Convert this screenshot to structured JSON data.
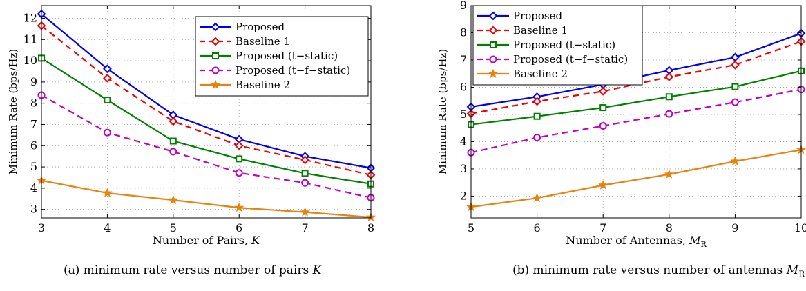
{
  "chart_data": [
    {
      "type": "line",
      "xlabel_text": "Number of Pairs,",
      "xlabel_var": "K",
      "ylabel": "Minimum Rate (bps/Hz)",
      "xlim": [
        3,
        8
      ],
      "ylim": [
        2.6,
        12.6
      ],
      "xticks": [
        3,
        4,
        5,
        6,
        7,
        8
      ],
      "yticks": [
        3,
        4,
        5,
        6,
        7,
        8,
        9,
        10,
        11,
        12
      ],
      "grid": "dotted",
      "legend_position": "top-right",
      "x": [
        3,
        4,
        5,
        6,
        7,
        8
      ],
      "series": [
        {
          "name": "Proposed",
          "values": [
            12.2,
            9.62,
            7.45,
            6.3,
            5.5,
            4.95
          ]
        },
        {
          "name": "Baseline 1",
          "values": [
            11.65,
            9.18,
            7.15,
            6.0,
            5.33,
            4.62
          ]
        },
        {
          "name": "Proposed (t−static)",
          "values": [
            10.12,
            8.15,
            6.22,
            5.38,
            4.7,
            4.2
          ]
        },
        {
          "name": "Proposed (t−f−static)",
          "values": [
            8.38,
            6.62,
            5.72,
            4.72,
            4.25,
            3.55
          ]
        },
        {
          "name": "Baseline 2",
          "values": [
            4.36,
            3.77,
            3.44,
            3.08,
            2.87,
            2.63
          ]
        }
      ],
      "caption_text": "(a)  minimum rate versus number of pairs",
      "caption_var": "K"
    },
    {
      "type": "line",
      "xlabel_text": "Number of Antennas,",
      "xlabel_var": "M",
      "xlabel_sub": "R",
      "ylabel": "Minimum Rate (bps/Hz)",
      "xlim": [
        5,
        10
      ],
      "ylim": [
        1.2,
        9
      ],
      "xticks": [
        5,
        6,
        7,
        8,
        9,
        10
      ],
      "yticks": [
        2,
        3,
        4,
        5,
        6,
        7,
        8,
        9
      ],
      "grid": "dotted",
      "legend_position": "top-left",
      "x": [
        5,
        6,
        7,
        8,
        9,
        10
      ],
      "series": [
        {
          "name": "Proposed",
          "values": [
            5.28,
            5.65,
            6.1,
            6.62,
            7.1,
            7.98
          ]
        },
        {
          "name": "Baseline 1",
          "values": [
            5.03,
            5.48,
            5.85,
            6.38,
            6.82,
            7.68
          ]
        },
        {
          "name": "Proposed (t−static)",
          "values": [
            4.63,
            4.93,
            5.25,
            5.65,
            6.02,
            6.6
          ]
        },
        {
          "name": "Proposed (t−f−static)",
          "values": [
            3.6,
            4.15,
            4.58,
            5.02,
            5.45,
            5.92
          ]
        },
        {
          "name": "Baseline 2",
          "values": [
            1.6,
            1.93,
            2.4,
            2.8,
            3.28,
            3.7
          ]
        }
      ],
      "caption_text": "(b)  minimum rate versus number of antennas",
      "caption_var": "M",
      "caption_sub": "R"
    }
  ],
  "series_styles": [
    {
      "color": "#0000ee",
      "dash": "",
      "marker": "diamond"
    },
    {
      "color": "#ee0000",
      "dash": "9,6",
      "marker": "diamond"
    },
    {
      "color": "#008000",
      "dash": "",
      "marker": "square"
    },
    {
      "color": "#c000c0",
      "dash": "9,6",
      "marker": "circle"
    },
    {
      "color": "#e8820c",
      "dash": "",
      "marker": "star"
    }
  ]
}
